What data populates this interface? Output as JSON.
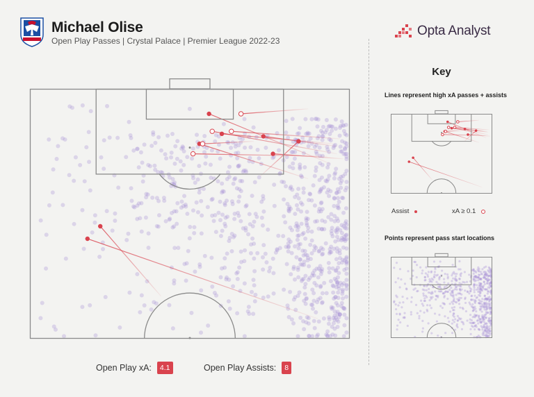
{
  "header": {
    "title": "Michael Olise",
    "subtitle": "Open Play Passes | Crystal Palace | Premier League 2022-23",
    "brand": "Opta Analyst"
  },
  "key": {
    "title": "Key",
    "lines_note": "Lines represent high xA passes + assists",
    "points_note": "Points represent pass start locations",
    "assist_label": "Assist",
    "xa_label": "xA ≥ 0.1"
  },
  "stats": {
    "xa_label": "Open Play xA:",
    "xa_value": "4.1",
    "assists_label": "Open Play Assists:",
    "assists_value": "8"
  },
  "colors": {
    "assist": "#d9434e",
    "pass_points": "#a893d8",
    "pitch_lines": "#8a8a8a",
    "background": "#f3f3f1"
  },
  "chart_data": {
    "type": "scatter",
    "description_of_axes": "pitch x = 0..100 across width, y = 0..100 from goal line (top) down to halfway line (bottom)",
    "xlim": [
      0,
      100
    ],
    "ylim": [
      0,
      100
    ],
    "highlighted_passes": [
      {
        "kind": "assist",
        "start": [
          53,
          22
        ],
        "end": [
          87,
          36
        ]
      },
      {
        "kind": "assist",
        "start": [
          22,
          55
        ],
        "end": [
          41,
          83
        ]
      },
      {
        "kind": "assist",
        "start": [
          18,
          60
        ],
        "end": [
          90,
          92
        ]
      },
      {
        "kind": "assist",
        "start": [
          60,
          18
        ],
        "end": [
          95,
          22
        ]
      },
      {
        "kind": "assist",
        "start": [
          76,
          26
        ],
        "end": [
          98,
          28
        ]
      },
      {
        "kind": "assist",
        "start": [
          84,
          21
        ],
        "end": [
          72,
          35
        ]
      },
      {
        "kind": "assist",
        "start": [
          56,
          10
        ],
        "end": [
          94,
          30
        ]
      },
      {
        "kind": "assist",
        "start": [
          73,
          19
        ],
        "end": [
          96,
          23
        ]
      },
      {
        "kind": "xa",
        "start": [
          63,
          17
        ],
        "end": [
          97,
          20
        ]
      },
      {
        "kind": "xa",
        "start": [
          57,
          17
        ],
        "end": [
          96,
          26
        ]
      },
      {
        "kind": "xa",
        "start": [
          66,
          10
        ],
        "end": [
          87,
          8
        ]
      },
      {
        "kind": "xa",
        "start": [
          51,
          26
        ],
        "end": [
          93,
          27
        ]
      },
      {
        "kind": "xa",
        "start": [
          54,
          22
        ],
        "end": [
          70,
          21
        ]
      }
    ],
    "pass_points_summary": "approx. 900 pass start locations, densest on the right flank (x 85-100) and around the edge of the final third"
  }
}
